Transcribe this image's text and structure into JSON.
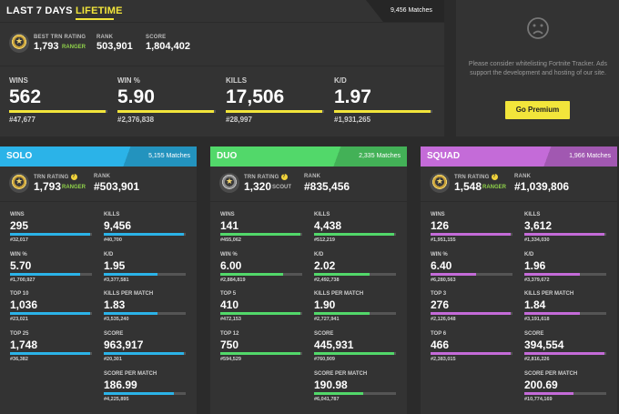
{
  "colors": {
    "bg": "#2b2b2b",
    "panel": "#333333",
    "accent_yellow": "#f2e53b",
    "solo": "#2bb3e8",
    "duo": "#52d86a",
    "squad": "#c46bd8",
    "ranger_green": "#8ed04a",
    "scout_gray": "#b8b8b8"
  },
  "tabs": {
    "last7": "LAST 7 DAYS",
    "lifetime": "LIFETIME",
    "matches": "9,456 Matches"
  },
  "overview": {
    "trn_label": "BEST TRN RATING",
    "trn_value": "1,793",
    "trn_rank": "RANGER",
    "rank_label": "RANK",
    "rank_value": "503,901",
    "score_label": "SCORE",
    "score_value": "1,804,402",
    "stats": [
      {
        "label": "WINS",
        "value": "562",
        "rank": "#47,677",
        "fill": 0.98
      },
      {
        "label": "WIN %",
        "value": "5.90",
        "rank": "#2,376,838",
        "fill": 0.98
      },
      {
        "label": "KILLS",
        "value": "17,506",
        "rank": "#28,997",
        "fill": 0.98
      },
      {
        "label": "K/D",
        "value": "1.97",
        "rank": "#1,931,265",
        "fill": 0.98
      }
    ]
  },
  "ad": {
    "icon": "sad-face-icon",
    "text": "Please consider whitelisting Fortnite Tracker. Ads support the development and hosting of our site.",
    "button": "Go Premium"
  },
  "modes": [
    {
      "key": "solo",
      "title": "SOLO",
      "matches": "5,155 Matches",
      "trn_label": "TRN RATING",
      "trn_value": "1,793",
      "trn_rank": "RANGER",
      "rank_label": "RANK",
      "rank_value": "#503,901",
      "left": [
        {
          "label": "WINS",
          "value": "295",
          "rank": "#32,017",
          "fill": 0.98
        },
        {
          "label": "WIN %",
          "value": "5.70",
          "rank": "#1,700,927",
          "fill": 0.85
        },
        {
          "label": "TOP 10",
          "value": "1,036",
          "rank": "#23,021",
          "fill": 0.98
        },
        {
          "label": "TOP 25",
          "value": "1,748",
          "rank": "#36,382",
          "fill": 0.98
        }
      ],
      "right": [
        {
          "label": "KILLS",
          "value": "9,456",
          "rank": "#40,700",
          "fill": 0.98
        },
        {
          "label": "K/D",
          "value": "1.95",
          "rank": "#3,377,581",
          "fill": 0.65
        },
        {
          "label": "KILLS PER MATCH",
          "value": "1.83",
          "rank": "#3,535,240",
          "fill": 0.65
        },
        {
          "label": "SCORE",
          "value": "963,917",
          "rank": "#20,301",
          "fill": 0.98
        },
        {
          "label": "SCORE PER MATCH",
          "value": "186.99",
          "rank": "#4,225,895",
          "fill": 0.85
        }
      ]
    },
    {
      "key": "duo",
      "title": "DUO",
      "matches": "2,335 Matches",
      "trn_label": "TRN RATING",
      "trn_value": "1,320",
      "trn_rank": "SCOUT",
      "rank_label": "RANK",
      "rank_value": "#835,456",
      "left": [
        {
          "label": "WINS",
          "value": "141",
          "rank": "#455,062",
          "fill": 0.98
        },
        {
          "label": "WIN %",
          "value": "6.00",
          "rank": "#2,884,819",
          "fill": 0.77
        },
        {
          "label": "TOP 5",
          "value": "410",
          "rank": "#472,153",
          "fill": 0.98
        },
        {
          "label": "TOP 12",
          "value": "750",
          "rank": "#594,529",
          "fill": 0.98
        }
      ],
      "right": [
        {
          "label": "KILLS",
          "value": "4,438",
          "rank": "#512,219",
          "fill": 0.98
        },
        {
          "label": "K/D",
          "value": "2.02",
          "rank": "#2,492,738",
          "fill": 0.68
        },
        {
          "label": "KILLS PER MATCH",
          "value": "1.90",
          "rank": "#2,727,941",
          "fill": 0.68
        },
        {
          "label": "SCORE",
          "value": "445,931",
          "rank": "#760,909",
          "fill": 0.98
        },
        {
          "label": "SCORE PER MATCH",
          "value": "190.98",
          "rank": "#6,041,787",
          "fill": 0.6
        }
      ]
    },
    {
      "key": "squad",
      "title": "SQUAD",
      "matches": "1,966 Matches",
      "trn_label": "TRN RATING",
      "trn_value": "1,548",
      "trn_rank": "RANGER",
      "rank_label": "RANK",
      "rank_value": "#1,039,806",
      "left": [
        {
          "label": "WINS",
          "value": "126",
          "rank": "#1,951,155",
          "fill": 0.98
        },
        {
          "label": "WIN %",
          "value": "6.40",
          "rank": "#6,280,563",
          "fill": 0.55
        },
        {
          "label": "TOP 3",
          "value": "276",
          "rank": "#2,126,048",
          "fill": 0.98
        },
        {
          "label": "TOP 6",
          "value": "466",
          "rank": "#2,383,015",
          "fill": 0.98
        }
      ],
      "right": [
        {
          "label": "KILLS",
          "value": "3,612",
          "rank": "#1,334,030",
          "fill": 0.98
        },
        {
          "label": "K/D",
          "value": "1.96",
          "rank": "#3,379,672",
          "fill": 0.68
        },
        {
          "label": "KILLS PER MATCH",
          "value": "1.84",
          "rank": "#3,191,618",
          "fill": 0.68
        },
        {
          "label": "SCORE",
          "value": "394,554",
          "rank": "#2,816,226",
          "fill": 0.98
        },
        {
          "label": "SCORE PER MATCH",
          "value": "200.69",
          "rank": "#10,774,169",
          "fill": 0.6
        }
      ]
    }
  ]
}
